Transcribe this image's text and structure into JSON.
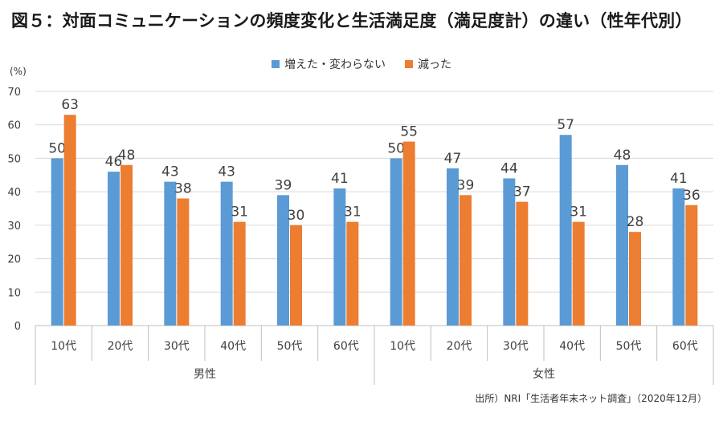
{
  "title": "図５：対面コミュニケーションの頻度変化と生活満足度（満足度計）の違い（性年代別）",
  "unit": "(%)",
  "source": "出所）NRI「生活者年末ネット調査」（2020年12月）",
  "colors": {
    "series1": "#5b9bd5",
    "series2": "#ed7d31",
    "grid": "#d9d9d9",
    "axis": "#bfbfbf",
    "text": "#404040"
  },
  "chart_data": {
    "type": "bar",
    "categories": [
      "10代",
      "20代",
      "30代",
      "40代",
      "50代",
      "60代",
      "10代",
      "20代",
      "30代",
      "40代",
      "50代",
      "60代"
    ],
    "groups": [
      {
        "label": "男性",
        "start": 0,
        "end": 5
      },
      {
        "label": "女性",
        "start": 6,
        "end": 11
      }
    ],
    "series": [
      {
        "name": "増えた・変わらない",
        "values": [
          50,
          46,
          43,
          43,
          39,
          41,
          50,
          47,
          44,
          57,
          48,
          41
        ]
      },
      {
        "name": "減った",
        "values": [
          63,
          48,
          38,
          31,
          30,
          31,
          55,
          39,
          37,
          31,
          28,
          36
        ]
      }
    ],
    "y_ticks": [
      0,
      10,
      20,
      30,
      40,
      50,
      60,
      70
    ],
    "ylim": [
      0,
      70
    ],
    "ylabel": "(%)",
    "legend_position": "top-center",
    "grid": true
  }
}
